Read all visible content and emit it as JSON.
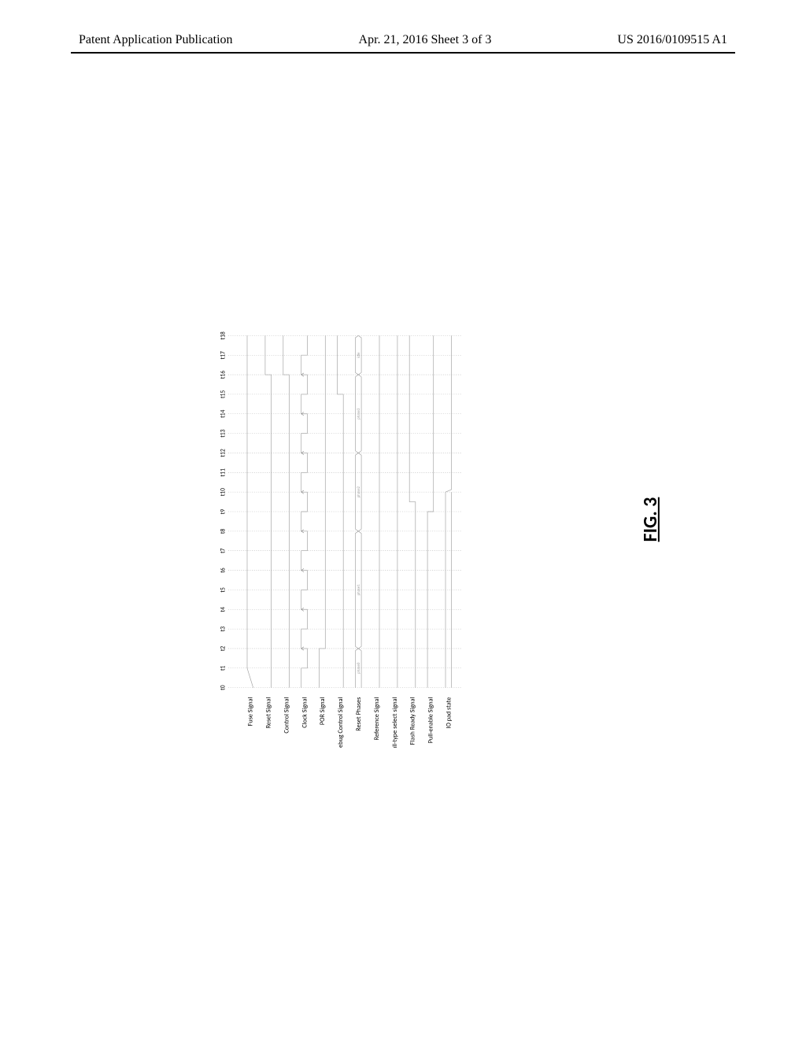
{
  "header": {
    "left": "Patent Application Publication",
    "center": "Apr. 21, 2016  Sheet 3 of 3",
    "right": "US 2016/0109515 A1"
  },
  "figure": {
    "caption": "FIG. 3",
    "colors": {
      "waveform_stroke": "#a0a0a0",
      "grid_stroke": "#b8b8b8",
      "arrow_stroke": "#808080",
      "bus_fill": "#e8e8e8",
      "text": "#000000",
      "phase_text": "#a0a0a0",
      "background": "#ffffff"
    },
    "line_width": 1.2,
    "time_ticks": [
      "t0",
      "t1",
      "t2",
      "t3",
      "t4",
      "t5",
      "t6",
      "t7",
      "t8",
      "t9",
      "t10",
      "t11",
      "t12",
      "t13",
      "t14",
      "t15",
      "t16",
      "t17",
      "t18"
    ],
    "t_end": 18,
    "row_spacing": 42,
    "wave_amplitude": 14,
    "signals": [
      {
        "name": "Fuse Signal",
        "type": "level",
        "segments": [
          [
            0,
            0
          ],
          [
            1,
            1
          ],
          [
            18,
            1
          ]
        ]
      },
      {
        "name": "Reset Signal",
        "type": "level",
        "segments": [
          [
            0,
            0
          ],
          [
            16,
            0
          ],
          [
            16,
            1
          ],
          [
            18,
            1
          ]
        ]
      },
      {
        "name": "Control Signal",
        "type": "level",
        "segments": [
          [
            0,
            0
          ],
          [
            16,
            0
          ],
          [
            16,
            1
          ],
          [
            18,
            1
          ]
        ]
      },
      {
        "name": "Clock Signal",
        "type": "clock",
        "edges": [
          1,
          2,
          3,
          4,
          5,
          6,
          7,
          8,
          9,
          10,
          11,
          12,
          13,
          14,
          15,
          16,
          17
        ],
        "arrows": true
      },
      {
        "name": "POR Signal",
        "type": "level",
        "segments": [
          [
            0,
            1
          ],
          [
            2,
            1
          ],
          [
            2,
            0
          ],
          [
            18,
            0
          ]
        ]
      },
      {
        "name": "Debug Control Signal",
        "type": "level",
        "segments": [
          [
            0,
            0
          ],
          [
            15,
            0
          ],
          [
            15,
            1
          ],
          [
            18,
            1
          ]
        ]
      },
      {
        "name": "Reset Phases",
        "type": "bus",
        "transitions": [
          0,
          2,
          8,
          12,
          16,
          18
        ],
        "labels": [
          "phase0",
          "phase1",
          "phase2",
          "phase3",
          "idle"
        ]
      },
      {
        "name": "Reference Signal",
        "type": "level",
        "segments": [
          [
            0,
            0
          ],
          [
            18,
            0
          ]
        ]
      },
      {
        "name": "Pull-type select signal",
        "type": "level",
        "segments": [
          [
            0,
            0
          ],
          [
            18,
            0
          ]
        ]
      },
      {
        "name": "Flash Ready Signal",
        "type": "level",
        "segments": [
          [
            0,
            0
          ],
          [
            9.5,
            0
          ],
          [
            9.5,
            1
          ],
          [
            18,
            1
          ]
        ]
      },
      {
        "name": "Pull-enable Signal",
        "type": "level",
        "segments": [
          [
            0,
            1
          ],
          [
            9,
            1
          ],
          [
            9,
            0
          ],
          [
            18,
            0
          ]
        ]
      },
      {
        "name": "IO pad state",
        "type": "hiz",
        "high_until": 10,
        "low_after": 10
      }
    ]
  }
}
